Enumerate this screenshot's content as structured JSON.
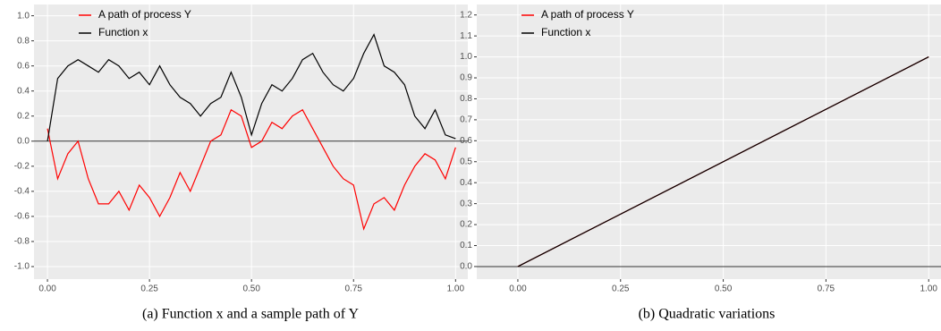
{
  "chart_data": [
    {
      "type": "line",
      "caption": "(a) Function x and a sample path of Y",
      "x": [
        0,
        0.025,
        0.05,
        0.075,
        0.1,
        0.125,
        0.15,
        0.175,
        0.2,
        0.225,
        0.25,
        0.275,
        0.3,
        0.325,
        0.35,
        0.375,
        0.4,
        0.425,
        0.45,
        0.475,
        0.5,
        0.525,
        0.55,
        0.575,
        0.6,
        0.625,
        0.65,
        0.675,
        0.7,
        0.725,
        0.75,
        0.775,
        0.8,
        0.825,
        0.85,
        0.875,
        0.9,
        0.925,
        0.95,
        0.975,
        1
      ],
      "series": [
        {
          "name": "A path of process Y",
          "color": "#ff0000",
          "values": [
            0.1,
            -0.3,
            -0.1,
            0.0,
            -0.3,
            -0.5,
            -0.5,
            -0.4,
            -0.55,
            -0.35,
            -0.45,
            -0.6,
            -0.45,
            -0.25,
            -0.4,
            -0.2,
            0.0,
            0.05,
            0.25,
            0.2,
            -0.05,
            0.0,
            0.15,
            0.1,
            0.2,
            0.25,
            0.1,
            -0.05,
            -0.2,
            -0.3,
            -0.35,
            -0.7,
            -0.5,
            -0.45,
            -0.55,
            -0.35,
            -0.2,
            -0.1,
            -0.15,
            -0.3,
            -0.05
          ]
        },
        {
          "name": "Function x",
          "color": "#000000",
          "values": [
            0,
            0.5,
            0.6,
            0.65,
            0.6,
            0.55,
            0.65,
            0.6,
            0.5,
            0.55,
            0.45,
            0.6,
            0.45,
            0.35,
            0.3,
            0.2,
            0.3,
            0.35,
            0.55,
            0.35,
            0.05,
            0.3,
            0.45,
            0.4,
            0.5,
            0.65,
            0.7,
            0.55,
            0.45,
            0.4,
            0.5,
            0.7,
            0.85,
            0.6,
            0.55,
            0.45,
            0.2,
            0.1,
            0.25,
            0.05,
            0.02
          ]
        }
      ],
      "hline": 0,
      "xlim": [
        -0.033,
        1.03
      ],
      "ylim": [
        -1.1,
        1.09
      ],
      "xticks": [
        {
          "value": 0,
          "label": "0.00"
        },
        0.25,
        {
          "value": 0.5,
          "label": "0.50"
        },
        0.75,
        {
          "value": 1,
          "label": "1.00"
        }
      ],
      "yticks": [
        {
          "value": -1,
          "label": "-1.0"
        },
        -0.8,
        -0.6,
        -0.4,
        -0.2,
        {
          "value": 0,
          "label": "0.0"
        },
        0.2,
        0.4,
        0.6,
        0.8,
        {
          "value": 1,
          "label": "1.0"
        }
      ],
      "grid": true,
      "legend": "top-left"
    },
    {
      "type": "line",
      "caption": "(b) Quadratic variations",
      "x": [
        0,
        1
      ],
      "series": [
        {
          "name": "A path of process Y",
          "color": "#ff0000",
          "values": [
            0,
            1
          ]
        },
        {
          "name": "Function x",
          "color": "#000000",
          "values": [
            0,
            1
          ]
        }
      ],
      "hline": 0,
      "xlim": [
        -0.1,
        1.03
      ],
      "ylim": [
        -0.06,
        1.25
      ],
      "xticks": [
        {
          "value": 0,
          "label": "0.00"
        },
        0.25,
        {
          "value": 0.5,
          "label": "0.50"
        },
        0.75,
        {
          "value": 1,
          "label": "1.00"
        }
      ],
      "yticks": [
        {
          "value": 0,
          "label": "0.0"
        },
        0.1,
        0.2,
        0.3,
        0.4,
        0.5,
        0.6,
        0.7,
        0.8,
        0.9,
        {
          "value": 1,
          "label": "1.0"
        },
        1.1,
        1.2
      ],
      "grid": true,
      "legend": "top-left"
    }
  ]
}
